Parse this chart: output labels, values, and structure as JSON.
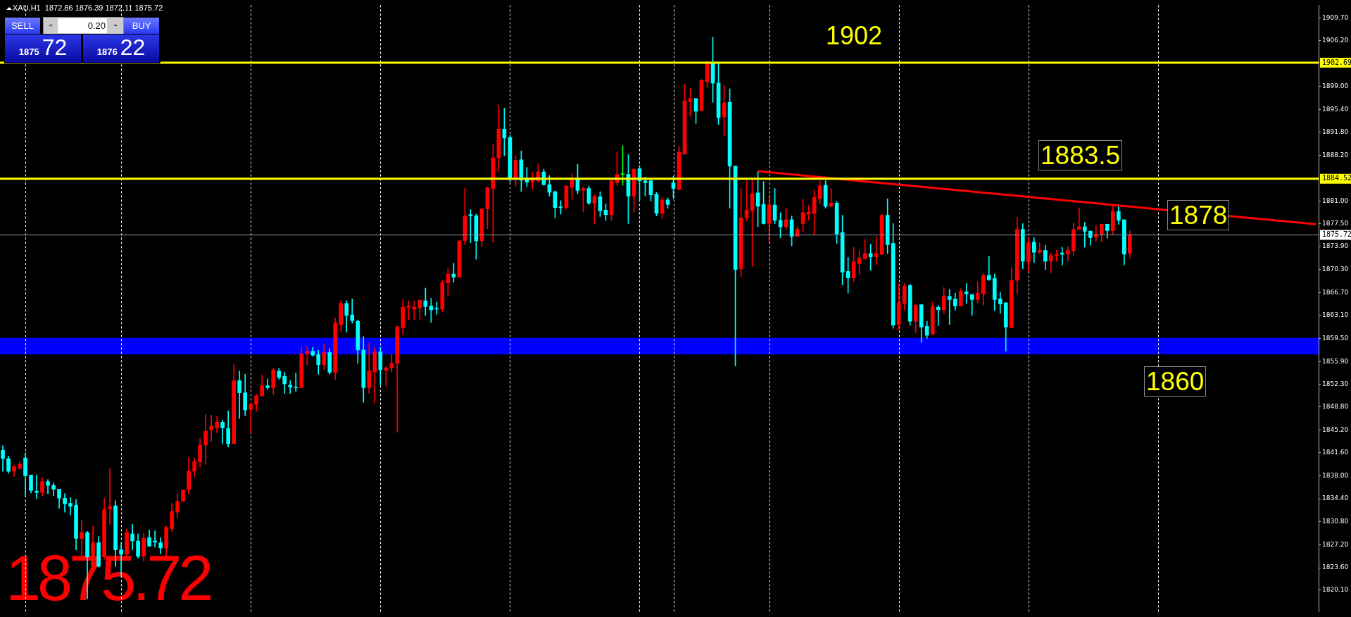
{
  "chart_data": {
    "type": "candlestick",
    "categories": [
      null,
      null,
      null,
      null,
      null,
      null,
      null,
      null,
      null,
      null,
      null,
      null,
      null,
      null,
      null,
      null,
      null,
      null,
      null,
      null,
      null,
      null,
      null,
      null,
      null,
      null,
      null,
      null,
      null,
      null,
      null,
      null,
      null,
      null,
      null,
      null,
      null,
      null,
      null,
      null,
      null,
      null,
      null,
      null,
      null,
      null,
      null,
      null,
      null,
      null,
      null,
      null,
      null,
      null,
      null,
      null,
      null,
      null,
      null,
      null,
      null,
      null,
      null,
      null,
      null,
      null,
      null,
      null,
      null,
      null,
      null,
      null,
      null,
      null,
      null,
      null,
      null,
      null,
      null,
      null,
      null,
      null,
      null,
      null,
      null,
      null,
      null,
      null,
      null,
      null,
      null,
      null,
      null,
      null,
      null,
      null,
      null,
      null,
      null,
      null,
      null,
      null,
      null,
      null,
      null,
      null,
      null,
      null,
      null,
      null,
      null,
      null,
      null,
      null,
      null,
      null,
      null,
      null,
      null,
      null,
      null,
      null,
      null,
      null,
      null,
      null,
      null,
      null,
      null,
      null,
      null,
      null,
      null,
      null,
      null,
      null,
      null,
      null,
      null,
      null,
      null,
      null,
      null,
      null,
      null,
      null,
      null,
      null,
      null,
      null,
      null,
      null,
      null,
      null,
      null,
      null,
      null,
      null,
      null,
      null,
      null,
      null,
      null,
      null,
      null,
      null,
      null,
      null,
      null,
      null,
      null,
      null,
      null,
      null,
      null,
      null,
      null,
      null,
      null,
      null,
      null,
      null,
      null,
      null,
      null,
      null,
      null,
      null,
      null,
      null,
      null,
      null,
      null,
      null,
      null,
      null,
      null,
      null,
      null,
      null,
      null,
      null,
      null,
      null,
      null,
      null,
      null,
      null,
      null,
      null,
      null,
      null,
      null,
      null,
      null,
      null,
      null,
      null,
      null,
      null,
      null,
      null,
      null,
      null,
      null,
      null,
      null,
      null,
      null,
      null,
      null,
      null,
      null,
      null
    ],
    "series": [
      {
        "type": "candlestick",
        "ohlc": [
          [
            1842.0,
            1842.7,
            1838.7,
            1840.7
          ],
          [
            1840.7,
            1841.1,
            1838.4,
            1838.7
          ],
          [
            1838.7,
            1839.7,
            1837.9,
            1839.4
          ],
          [
            1839.2,
            1840.2,
            1839.0,
            1839.8
          ],
          [
            1840.8,
            1841.6,
            1834.7,
            1838.0
          ],
          [
            1838.1,
            1838.1,
            1835.3,
            1835.7
          ],
          [
            1835.6,
            1838.1,
            1834.4,
            1835.4
          ],
          [
            1835.4,
            1837.7,
            1834.9,
            1837.1
          ],
          [
            1837.1,
            1837.4,
            1835.2,
            1836.5
          ],
          [
            1836.5,
            1836.9,
            1834.9,
            1835.9
          ],
          [
            1835.9,
            1835.9,
            1832.9,
            1834.5
          ],
          [
            1834.5,
            1835.2,
            1832.3,
            1833.6
          ],
          [
            1833.7,
            1834.6,
            1831.9,
            1833.2
          ],
          [
            1833.4,
            1834.3,
            1826.4,
            1828.2
          ],
          [
            1828.2,
            1831.0,
            1825.5,
            1829.1
          ],
          [
            1829.1,
            1829.3,
            1818.7,
            1825.3
          ],
          [
            1823.8,
            1830.2,
            1823.5,
            1827.5
          ],
          [
            1827.5,
            1828.5,
            1823.7,
            1823.8
          ],
          [
            1825.3,
            1834.5,
            1824.9,
            1832.7
          ],
          [
            1832.8,
            1839.1,
            1830.4,
            1833.2
          ],
          [
            1833.3,
            1834.1,
            1823.8,
            1826.4
          ],
          [
            1826.4,
            1827.5,
            1822.2,
            1825.7
          ],
          [
            1825.7,
            1829.7,
            1825.3,
            1829.1
          ],
          [
            1828.9,
            1830.4,
            1826.4,
            1827.8
          ],
          [
            1827.8,
            1828.9,
            1825.1,
            1825.4
          ],
          [
            1825.4,
            1829.0,
            1824.6,
            1828.2
          ],
          [
            1828.3,
            1829.5,
            1826.9,
            1827.0
          ],
          [
            1827.8,
            1829.4,
            1826.8,
            1827.6
          ],
          [
            1827.5,
            1828.3,
            1825.8,
            1826.7
          ],
          [
            1826.7,
            1830.1,
            1825.5,
            1829.9
          ],
          [
            1829.7,
            1833.7,
            1829.2,
            1832.4
          ],
          [
            1832.3,
            1835.2,
            1831.4,
            1834.0
          ],
          [
            1834.0,
            1835.8,
            1834.0,
            1835.8
          ],
          [
            1835.8,
            1840.9,
            1835.1,
            1838.7
          ],
          [
            1838.7,
            1840.8,
            1837.9,
            1840.2
          ],
          [
            1840.2,
            1843.8,
            1839.4,
            1842.8
          ],
          [
            1842.8,
            1847.6,
            1839.8,
            1845.0
          ],
          [
            1845.2,
            1847.5,
            1843.4,
            1845.8
          ],
          [
            1845.5,
            1847.3,
            1844.7,
            1846.4
          ],
          [
            1846.4,
            1846.7,
            1843.0,
            1845.5
          ],
          [
            1845.4,
            1848.2,
            1842.5,
            1843.0
          ],
          [
            1843.0,
            1855.4,
            1843.0,
            1852.9
          ],
          [
            1852.9,
            1854.4,
            1847.0,
            1851.0
          ],
          [
            1851.0,
            1853.9,
            1847.4,
            1848.3
          ],
          [
            1848.4,
            1849.4,
            1844.7,
            1849.2
          ],
          [
            1849.2,
            1850.8,
            1848.1,
            1850.5
          ],
          [
            1850.5,
            1853.8,
            1850.5,
            1852.1
          ],
          [
            1852.1,
            1853.2,
            1851.6,
            1851.8
          ],
          [
            1851.8,
            1854.8,
            1850.7,
            1854.6
          ],
          [
            1854.4,
            1854.8,
            1853.1,
            1853.4
          ],
          [
            1853.6,
            1854.2,
            1850.9,
            1852.4
          ],
          [
            1852.2,
            1852.9,
            1850.9,
            1851.9
          ],
          [
            1851.9,
            1854.1,
            1851.2,
            1851.8
          ],
          [
            1851.8,
            1858.2,
            1851.8,
            1857.1
          ],
          [
            1857.1,
            1858.3,
            1855.4,
            1857.5
          ],
          [
            1857.5,
            1858.1,
            1856.7,
            1856.9
          ],
          [
            1857.0,
            1857.7,
            1853.9,
            1855.4
          ],
          [
            1855.4,
            1858.6,
            1854.6,
            1857.3
          ],
          [
            1857.3,
            1857.9,
            1853.9,
            1854.2
          ],
          [
            1854.2,
            1862.7,
            1853.1,
            1861.9
          ],
          [
            1861.7,
            1865.5,
            1860.6,
            1865.0
          ],
          [
            1865.0,
            1865.4,
            1860.5,
            1863.1
          ],
          [
            1863.2,
            1865.7,
            1861.9,
            1862.3
          ],
          [
            1862.2,
            1862.4,
            1855.6,
            1857.7
          ],
          [
            1857.7,
            1859.8,
            1849.5,
            1851.8
          ],
          [
            1851.8,
            1858.8,
            1850.9,
            1854.4
          ],
          [
            1854.3,
            1858.1,
            1849.4,
            1857.4
          ],
          [
            1857.4,
            1858.1,
            1852.2,
            1854.6
          ],
          [
            1854.5,
            1855.1,
            1852.0,
            1854.9
          ],
          [
            1854.9,
            1857.0,
            1854.3,
            1855.6
          ],
          [
            1855.6,
            1861.6,
            1844.8,
            1861.3
          ],
          [
            1861.2,
            1865.6,
            1860.1,
            1864.4
          ],
          [
            1864.4,
            1865.4,
            1862.4,
            1864.6
          ],
          [
            1864.1,
            1865.4,
            1862.5,
            1864.4
          ],
          [
            1864.3,
            1865.6,
            1862.5,
            1865.5
          ],
          [
            1865.4,
            1867.4,
            1863.1,
            1864.5
          ],
          [
            1864.6,
            1865.8,
            1862.0,
            1864.0
          ],
          [
            1864.2,
            1865.2,
            1863.3,
            1864.1
          ],
          [
            1864.1,
            1868.6,
            1863.7,
            1868.3
          ],
          [
            1868.2,
            1870.5,
            1866.1,
            1869.6
          ],
          [
            1869.6,
            1871.3,
            1868.3,
            1869.1
          ],
          [
            1869.1,
            1874.8,
            1869.1,
            1874.8
          ],
          [
            1874.8,
            1883.1,
            1874.2,
            1878.7
          ],
          [
            1878.9,
            1879.7,
            1874.5,
            1878.7
          ],
          [
            1878.7,
            1879.0,
            1871.9,
            1874.8
          ],
          [
            1874.8,
            1879.8,
            1873.9,
            1879.8
          ],
          [
            1879.8,
            1883.2,
            1876.7,
            1883.1
          ],
          [
            1883.0,
            1889.9,
            1874.5,
            1887.8
          ],
          [
            1887.8,
            1896.1,
            1885.7,
            1892.3
          ],
          [
            1892.3,
            1895.6,
            1888.1,
            1890.9
          ],
          [
            1891.0,
            1891.3,
            1884.0,
            1884.4
          ],
          [
            1884.4,
            1888.1,
            1883.4,
            1887.4
          ],
          [
            1887.5,
            1888.9,
            1882.5,
            1884.3
          ],
          [
            1884.4,
            1886.3,
            1883.3,
            1884.0
          ],
          [
            1884.0,
            1885.5,
            1882.9,
            1884.4
          ],
          [
            1884.2,
            1886.9,
            1883.9,
            1885.6
          ],
          [
            1885.6,
            1886.0,
            1883.5,
            1883.6
          ],
          [
            1883.6,
            1885.0,
            1881.8,
            1882.4
          ],
          [
            1882.5,
            1882.6,
            1878.4,
            1880.0
          ],
          [
            1880.1,
            1881.1,
            1879.0,
            1880.0
          ],
          [
            1880.0,
            1883.4,
            1879.8,
            1883.4
          ],
          [
            1883.2,
            1885.3,
            1881.3,
            1884.6
          ],
          [
            1884.6,
            1886.8,
            1882.2,
            1882.7
          ],
          [
            1882.7,
            1883.3,
            1879.3,
            1883.0
          ],
          [
            1883.0,
            1883.4,
            1880.5,
            1880.7
          ],
          [
            1880.7,
            1882.0,
            1877.4,
            1881.7
          ],
          [
            1881.7,
            1882.5,
            1878.6,
            1879.5
          ],
          [
            1879.6,
            1880.6,
            1878.0,
            1878.9
          ],
          [
            1878.9,
            1884.2,
            1878.0,
            1884.2
          ],
          [
            1883.9,
            1888.7,
            1883.5,
            1885.2
          ],
          [
            1885.2,
            1889.7,
            1883.5,
            1885.2
          ],
          [
            1885.2,
            1888.3,
            1877.5,
            1881.8
          ],
          [
            1881.8,
            1886.1,
            1879.3,
            1886.0
          ],
          [
            1886.1,
            1886.6,
            1881.1,
            1884.2
          ],
          [
            1884.2,
            1884.8,
            1881.8,
            1883.9
          ],
          [
            1884.2,
            1884.6,
            1881.0,
            1882.0
          ],
          [
            1882.1,
            1882.4,
            1878.7,
            1879.1
          ],
          [
            1879.1,
            1881.5,
            1878.3,
            1881.2
          ],
          [
            1881.2,
            1881.5,
            1879.9,
            1880.5
          ],
          [
            1883.9,
            1884.9,
            1881.4,
            1883.0
          ],
          [
            1882.8,
            1889.6,
            1882.8,
            1888.7
          ],
          [
            1888.4,
            1899.3,
            1888.3,
            1896.7
          ],
          [
            1896.6,
            1898.7,
            1894.3,
            1897.1
          ],
          [
            1897.1,
            1897.1,
            1893.2,
            1895.1
          ],
          [
            1895.2,
            1900.1,
            1895.1,
            1899.9
          ],
          [
            1899.7,
            1903.0,
            1898.8,
            1902.7
          ],
          [
            1902.7,
            1906.7,
            1896.5,
            1899.5
          ],
          [
            1899.5,
            1902.7,
            1893.0,
            1894.1
          ],
          [
            1894.2,
            1899.1,
            1891.3,
            1896.4
          ],
          [
            1896.5,
            1898.6,
            1879.9,
            1886.5
          ],
          [
            1886.5,
            1886.5,
            1855.2,
            1870.3
          ],
          [
            1870.4,
            1883.0,
            1869.2,
            1878.4
          ],
          [
            1878.4,
            1884.2,
            1877.9,
            1879.6
          ],
          [
            1879.5,
            1884.3,
            1870.8,
            1882.2
          ],
          [
            1882.3,
            1885.6,
            1877.0,
            1880.2
          ],
          [
            1880.5,
            1884.1,
            1877.4,
            1877.5
          ],
          [
            1877.5,
            1881.8,
            1874.5,
            1880.4
          ],
          [
            1880.4,
            1883.0,
            1877.5,
            1878.0
          ],
          [
            1878.0,
            1879.2,
            1875.3,
            1877.0
          ],
          [
            1877.0,
            1879.9,
            1876.6,
            1878.1
          ],
          [
            1878.1,
            1878.7,
            1874.0,
            1875.5
          ],
          [
            1875.5,
            1877.0,
            1875.5,
            1876.6
          ],
          [
            1877.5,
            1881.3,
            1876.2,
            1879.2
          ],
          [
            1879.0,
            1880.4,
            1878.0,
            1879.3
          ],
          [
            1879.1,
            1882.7,
            1875.7,
            1881.6
          ],
          [
            1881.4,
            1884.2,
            1880.6,
            1883.4
          ],
          [
            1883.5,
            1884.2,
            1879.9,
            1880.2
          ],
          [
            1880.2,
            1883.0,
            1880.1,
            1880.7
          ],
          [
            1880.7,
            1881.0,
            1874.4,
            1875.9
          ],
          [
            1876.1,
            1878.8,
            1867.9,
            1869.9
          ],
          [
            1870.0,
            1872.2,
            1866.6,
            1869.0
          ],
          [
            1869.0,
            1873.8,
            1868.4,
            1871.5
          ],
          [
            1871.2,
            1873.2,
            1869.5,
            1872.1
          ],
          [
            1872.0,
            1875.0,
            1871.9,
            1872.8
          ],
          [
            1872.8,
            1874.3,
            1870.2,
            1872.3
          ],
          [
            1872.3,
            1875.5,
            1871.0,
            1872.8
          ],
          [
            1872.7,
            1879.0,
            1872.6,
            1878.8
          ],
          [
            1878.8,
            1881.4,
            1872.8,
            1874.2
          ],
          [
            1874.4,
            1877.5,
            1861.1,
            1861.6
          ],
          [
            1861.7,
            1868.1,
            1860.8,
            1865.1
          ],
          [
            1865.0,
            1868.1,
            1864.0,
            1867.7
          ],
          [
            1867.8,
            1868.0,
            1861.6,
            1862.2
          ],
          [
            1862.2,
            1864.9,
            1860.4,
            1864.7
          ],
          [
            1864.8,
            1864.8,
            1858.9,
            1861.3
          ],
          [
            1861.4,
            1862.2,
            1859.5,
            1860.0
          ],
          [
            1860.2,
            1865.2,
            1860.1,
            1864.5
          ],
          [
            1864.4,
            1864.7,
            1861.5,
            1864.0
          ],
          [
            1864.0,
            1867.5,
            1863.4,
            1866.1
          ],
          [
            1866.1,
            1867.2,
            1861.7,
            1865.6
          ],
          [
            1865.7,
            1866.6,
            1863.9,
            1864.6
          ],
          [
            1864.6,
            1867.3,
            1864.6,
            1866.9
          ],
          [
            1866.8,
            1868.1,
            1865.0,
            1866.5
          ],
          [
            1866.4,
            1866.4,
            1863.1,
            1865.6
          ],
          [
            1865.6,
            1868.4,
            1865.1,
            1866.6
          ],
          [
            1866.5,
            1869.7,
            1864.7,
            1869.4
          ],
          [
            1869.4,
            1872.4,
            1868.6,
            1868.7
          ],
          [
            1868.9,
            1869.6,
            1863.9,
            1865.6
          ],
          [
            1865.7,
            1866.7,
            1863.4,
            1864.9
          ],
          [
            1865.1,
            1865.1,
            1857.5,
            1861.3
          ],
          [
            1861.2,
            1870.6,
            1861.2,
            1868.6
          ],
          [
            1868.6,
            1878.5,
            1866.5,
            1876.6
          ],
          [
            1876.6,
            1877.5,
            1870.4,
            1871.6
          ],
          [
            1871.5,
            1875.3,
            1870.0,
            1874.5
          ],
          [
            1874.6,
            1875.3,
            1871.4,
            1873.0
          ],
          [
            1873.0,
            1874.5,
            1872.8,
            1873.3
          ],
          [
            1873.3,
            1874.1,
            1870.3,
            1871.6
          ],
          [
            1871.6,
            1872.9,
            1869.8,
            1872.5
          ],
          [
            1872.5,
            1873.3,
            1871.6,
            1872.7
          ],
          [
            1872.9,
            1873.8,
            1871.0,
            1872.7
          ],
          [
            1872.7,
            1873.9,
            1871.6,
            1873.3
          ],
          [
            1873.2,
            1877.6,
            1872.5,
            1876.6
          ],
          [
            1876.6,
            1879.9,
            1876.6,
            1877.0
          ],
          [
            1877.0,
            1877.7,
            1873.8,
            1876.3
          ],
          [
            1876.3,
            1876.4,
            1874.1,
            1875.3
          ],
          [
            1875.4,
            1877.2,
            1874.8,
            1875.8
          ],
          [
            1875.8,
            1877.4,
            1874.7,
            1877.4
          ],
          [
            1877.4,
            1877.4,
            1875.2,
            1876.4
          ],
          [
            1876.4,
            1880.3,
            1875.7,
            1879.4
          ],
          [
            1879.4,
            1880.1,
            1877.4,
            1878.0
          ],
          [
            1878.1,
            1878.1,
            1871.0,
            1872.7
          ],
          [
            1872.86,
            1876.39,
            1872.11,
            1875.72
          ],
          null,
          null,
          null,
          null,
          null,
          null,
          null,
          null,
          null,
          null,
          null,
          null,
          null,
          null,
          null,
          null,
          null,
          null,
          null,
          null,
          null,
          null,
          null,
          null,
          null,
          null,
          null,
          null,
          null,
          null,
          null,
          null,
          null
        ],
        "colors": [
          "#00ffff",
          "#00ffff",
          "#ff0000",
          "#ff0000",
          "#00ffff",
          "#00ffff",
          "#00ffff",
          "#ff0000",
          "#00ffff",
          "#00ffff",
          "#00ffff",
          "#00ffff",
          "#00ffff",
          "#00ffff",
          "#ff0000",
          "#00ffff",
          "#ff0000",
          "#00ffff",
          "#ff0000",
          "#ff0000",
          "#00ffff",
          "#00ffff",
          "#ff0000",
          "#00ffff",
          "#00ffff",
          "#ff0000",
          "#00ffff",
          "#00ffff",
          "#00ffff",
          "#ff0000",
          "#ff0000",
          "#ff0000",
          "#ff0000",
          "#ff0000",
          "#ff0000",
          "#ff0000",
          "#ff0000",
          "#ff0000",
          "#ff0000",
          "#00ffff",
          "#00ffff",
          "#ff0000",
          "#00ffff",
          "#00ffff",
          "#ff0000",
          "#ff0000",
          "#ff0000",
          "#00ffff",
          "#ff0000",
          "#00ffff",
          "#00ffff",
          "#00ffff",
          "#00ffff",
          "#ff0000",
          "#ff0000",
          "#00ffff",
          "#00ffff",
          "#ff0000",
          "#00ffff",
          "#ff0000",
          "#ff0000",
          "#00ffff",
          "#00ffff",
          "#00ffff",
          "#00ffff",
          "#ff0000",
          "#ff0000",
          "#00ffff",
          "#ff0000",
          "#ff0000",
          "#ff0000",
          "#ff0000",
          "#ff0000",
          "#ff0000",
          "#ff0000",
          "#00ffff",
          "#00ffff",
          "#00ffff",
          "#ff0000",
          "#ff0000",
          "#00ffff",
          "#ff0000",
          "#ff0000",
          "#00ffff",
          "#00ffff",
          "#ff0000",
          "#ff0000",
          "#ff0000",
          "#ff0000",
          "#00ffff",
          "#00ffff",
          "#ff0000",
          "#00ffff",
          "#00ffff",
          "#ff0000",
          "#ff0000",
          "#00ffff",
          "#00ffff",
          "#00ffff",
          "#00ffff",
          "#ff0000",
          "#ff0000",
          "#00ffff",
          "#ff0000",
          "#00ffff",
          "#ff0000",
          "#00ffff",
          "#00ffff",
          "#ff0000",
          "#ff0000",
          "#00ff00",
          "#00ffff",
          "#ff0000",
          "#00ffff",
          "#00ffff",
          "#00ffff",
          "#00ffff",
          "#ff0000",
          "#00ffff",
          "#00ffff",
          "#ff0000",
          "#ff0000",
          "#ff0000",
          "#00ffff",
          "#ff0000",
          "#ff0000",
          "#00ffff",
          "#00ffff",
          "#ff0000",
          "#00ffff",
          "#00ffff",
          "#ff0000",
          "#ff0000",
          "#ff0000",
          "#00ffff",
          "#00ffff",
          "#ff0000",
          "#00ffff",
          "#00ffff",
          "#ff0000",
          "#00ffff",
          "#ff0000",
          "#ff0000",
          "#ff0000",
          "#ff0000",
          "#ff0000",
          "#00ffff",
          "#ff0000",
          "#00ffff",
          "#00ffff",
          "#00ffff",
          "#ff0000",
          "#ff0000",
          "#ff0000",
          "#00ffff",
          "#ff0000",
          "#ff0000",
          "#00ffff",
          "#00ffff",
          "#ff0000",
          "#ff0000",
          "#00ffff",
          "#ff0000",
          "#00ffff",
          "#00ffff",
          "#ff0000",
          "#00ffff",
          "#ff0000",
          "#00ffff",
          "#00ffff",
          "#ff0000",
          "#00ffff",
          "#00ffff",
          "#ff0000",
          "#ff0000",
          "#00ffff",
          "#00ffff",
          "#00ffff",
          "#00ffff",
          "#ff0000",
          "#ff0000",
          "#00ffff",
          "#ff0000",
          "#00ffff",
          "#ff0000",
          "#00ffff",
          "#ff0000",
          "#ff0000",
          "#00ffff",
          "#ff0000",
          "#ff0000",
          "#ff0000",
          "#00ffff",
          "#00ffff",
          "#ff0000",
          "#ff0000",
          "#00ffff",
          "#ff0000",
          "#00ffff",
          "#00ffff",
          "#ff0000",
          null,
          null,
          null,
          null,
          null,
          null,
          null,
          null,
          null,
          null,
          null,
          null,
          null,
          null,
          null,
          null,
          null,
          null,
          null,
          null,
          null,
          null,
          null,
          null,
          null,
          null,
          null,
          null,
          null,
          null,
          null,
          null,
          null
        ]
      },
      {
        "type": "line",
        "color": "#ff0000",
        "values": [
          null,
          null,
          null,
          null,
          null,
          null,
          null,
          null,
          null,
          null,
          null,
          null,
          null,
          null,
          null,
          null,
          null,
          null,
          null,
          null,
          null,
          null,
          null,
          null,
          null,
          null,
          null,
          null,
          null,
          null,
          null,
          null,
          null,
          null,
          null,
          null,
          null,
          null,
          null,
          null,
          null,
          null,
          null,
          null,
          null,
          null,
          null,
          null,
          null,
          null,
          null,
          null,
          null,
          null,
          null,
          null,
          null,
          null,
          null,
          null,
          null,
          null,
          null,
          null,
          null,
          null,
          null,
          null,
          null,
          null,
          null,
          null,
          null,
          null,
          null,
          null,
          null,
          null,
          null,
          null,
          null,
          null,
          null,
          null,
          null,
          null,
          null,
          null,
          null,
          null,
          null,
          null,
          null,
          null,
          null,
          null,
          null,
          null,
          null,
          null,
          null,
          null,
          null,
          null,
          null,
          null,
          null,
          null,
          null,
          null,
          null,
          null,
          null,
          null,
          null,
          null,
          null,
          null,
          null,
          null,
          null,
          null,
          null,
          null,
          null,
          null,
          null,
          null,
          null,
          null,
          null,
          null,
          null,
          null,
          1885.7,
          null,
          null,
          null,
          null,
          null,
          null,
          null,
          null,
          null,
          null,
          null,
          null,
          null,
          null,
          null,
          null,
          null,
          null,
          null,
          null,
          null,
          null,
          null,
          null,
          null,
          null,
          null,
          null,
          null,
          null,
          null,
          null,
          null,
          null,
          null,
          null,
          null,
          null,
          null,
          null,
          null,
          null,
          null,
          null,
          null,
          null,
          null,
          null,
          null,
          null,
          null,
          null,
          null,
          null,
          null,
          null,
          null,
          null,
          null,
          null,
          null,
          null,
          null,
          null,
          null,
          null,
          null,
          null,
          null,
          null,
          null,
          null,
          null,
          null,
          null,
          null,
          null,
          null,
          null,
          null,
          null,
          null,
          null,
          null,
          null,
          null,
          null,
          null,
          null,
          null,
          null,
          null,
          null,
          null,
          null,
          null,
          null,
          null,
          1877.4
        ]
      }
    ],
    "ylim": [
      1816.7,
      1911.7
    ],
    "yticks": [
      {
        "value": 1909.7,
        "label": "1909.70"
      },
      {
        "value": 1906.2,
        "label": "1906.20"
      },
      {
        "value": 1899.0,
        "label": "1899.00"
      },
      {
        "value": 1895.4,
        "label": "1895.40"
      },
      {
        "value": 1891.8,
        "label": "1891.80"
      },
      {
        "value": 1888.2,
        "label": "1888.20"
      },
      {
        "value": 1881.0,
        "label": "1881.00"
      },
      {
        "value": 1877.5,
        "label": "1877.50"
      },
      {
        "value": 1873.9,
        "label": "1873.90"
      },
      {
        "value": 1870.3,
        "label": "1870.30"
      },
      {
        "value": 1866.7,
        "label": "1866.70"
      },
      {
        "value": 1863.1,
        "label": "1863.10"
      },
      {
        "value": 1859.5,
        "label": "1859.50"
      },
      {
        "value": 1855.9,
        "label": "1855.90"
      },
      {
        "value": 1852.3,
        "label": "1852.30"
      },
      {
        "value": 1848.8,
        "label": "1848.80"
      },
      {
        "value": 1845.2,
        "label": "1845.20"
      },
      {
        "value": 1841.6,
        "label": "1841.60"
      },
      {
        "value": 1838.0,
        "label": "1838.00"
      },
      {
        "value": 1834.4,
        "label": "1834.40"
      },
      {
        "value": 1830.8,
        "label": "1830.80"
      },
      {
        "value": 1827.2,
        "label": "1827.20"
      },
      {
        "value": 1823.6,
        "label": "1823.60"
      },
      {
        "value": 1820.1,
        "label": "1820.10"
      }
    ],
    "ref_lines": [
      {
        "axis": "y",
        "value": 1902.69,
        "label": "1902.69",
        "color": "#ffff00"
      },
      {
        "axis": "y",
        "value": 1884.52,
        "label": "1884.52",
        "color": "#ffff00"
      },
      {
        "axis": "y",
        "value": 1875.72,
        "label": "1875.72",
        "color": "#8899aa"
      }
    ],
    "bands": [
      {
        "axis": "y",
        "from": 1857.0,
        "to": 1859.6,
        "color": "#0000ff"
      }
    ],
    "annotations": [
      "XAU,H1  1872.86 1876.39 1872.11 1875.72",
      "SELL",
      "0.20",
      "BUY",
      "1875",
      "72",
      "1876",
      "22",
      "1902",
      "1883.5",
      "1878",
      "1860",
      "1875.72"
    ],
    "tick_labels": "y",
    "grid": false,
    "legend": false
  }
}
